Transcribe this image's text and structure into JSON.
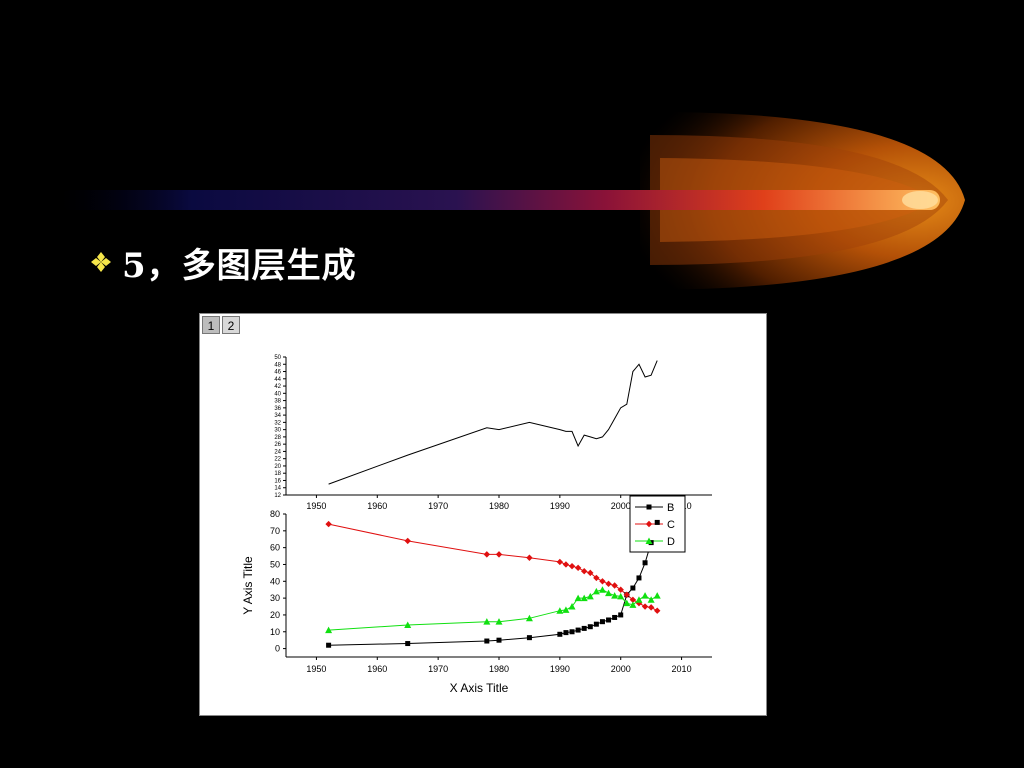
{
  "slide": {
    "heading": "5，多图层生成",
    "bullet_icon": "diamond-cluster-icon",
    "colors": {
      "background": "#000000",
      "heading": "#ffffff",
      "bullet": "#f6e64a",
      "comet_head": "#ff9a1a",
      "comet_tail": "#1a1a6e"
    }
  },
  "layer_tabs": [
    {
      "label": "1",
      "active": true
    },
    {
      "label": "2",
      "active": false
    }
  ],
  "chart_data": [
    {
      "type": "line",
      "title": "",
      "xlabel": "",
      "ylabel": "",
      "xlim": [
        1945,
        2015
      ],
      "ylim": [
        12,
        50
      ],
      "x_ticks": [
        1950,
        1960,
        1970,
        1980,
        1990,
        2000,
        2010
      ],
      "y_ticks": [
        12,
        14,
        16,
        18,
        20,
        22,
        24,
        26,
        28,
        30,
        32,
        34,
        36,
        38,
        40,
        42,
        44,
        46,
        48,
        50
      ],
      "series": [
        {
          "color": "#000000",
          "x": [
            1952,
            1965,
            1978,
            1980,
            1985,
            1990,
            1991,
            1992,
            1993,
            1994,
            1995,
            1996,
            1997,
            1998,
            1999,
            2000,
            2001,
            2002,
            2003,
            2004,
            2005,
            2006
          ],
          "y": [
            15,
            23,
            30.5,
            30,
            32,
            30,
            29.5,
            29.5,
            25.5,
            28.5,
            28,
            27.5,
            28,
            30,
            33,
            36,
            37,
            46,
            48,
            44.5,
            45,
            49
          ]
        }
      ]
    },
    {
      "type": "scatter",
      "title": "",
      "xlabel": "X Axis Title",
      "ylabel": "Y Axis Title",
      "xlim": [
        1945,
        2015
      ],
      "ylim": [
        -5,
        80
      ],
      "x_ticks": [
        1950,
        1960,
        1970,
        1980,
        1990,
        2000,
        2010
      ],
      "y_ticks": [
        0,
        10,
        20,
        30,
        40,
        50,
        60,
        70,
        80
      ],
      "legend_position": "top-right",
      "series": [
        {
          "name": "B",
          "color": "#000000",
          "marker": "square",
          "x": [
            1952,
            1965,
            1978,
            1980,
            1985,
            1990,
            1991,
            1992,
            1993,
            1994,
            1995,
            1996,
            1997,
            1998,
            1999,
            2000,
            2001,
            2002,
            2003,
            2004,
            2005,
            2006
          ],
          "y": [
            2,
            3,
            4.5,
            5,
            6.5,
            8.5,
            9.5,
            10,
            11,
            12,
            13,
            14.5,
            16,
            17,
            18.5,
            20,
            32,
            36,
            42,
            51,
            63,
            75
          ]
        },
        {
          "name": "C",
          "color": "#e01010",
          "marker": "diamond",
          "x": [
            1952,
            1965,
            1978,
            1980,
            1985,
            1990,
            1991,
            1992,
            1993,
            1994,
            1995,
            1996,
            1997,
            1998,
            1999,
            2000,
            2001,
            2002,
            2003,
            2004,
            2005,
            2006
          ],
          "y": [
            74,
            64,
            56,
            56,
            54,
            51.5,
            50,
            49,
            48,
            46,
            45,
            42,
            40,
            38.5,
            37.5,
            35,
            32,
            29,
            27,
            25,
            24.5,
            22.5
          ]
        },
        {
          "name": "D",
          "color": "#10e010",
          "marker": "triangle",
          "x": [
            1952,
            1965,
            1978,
            1980,
            1985,
            1990,
            1991,
            1992,
            1993,
            1994,
            1995,
            1996,
            1997,
            1998,
            1999,
            2000,
            2001,
            2002,
            2003,
            2004,
            2005,
            2006
          ],
          "y": [
            11,
            14,
            16,
            16,
            18,
            22.5,
            23,
            25,
            30,
            30,
            31,
            34,
            35,
            33,
            31.5,
            31,
            27,
            26,
            29,
            31.5,
            29,
            31.5
          ]
        }
      ]
    }
  ]
}
